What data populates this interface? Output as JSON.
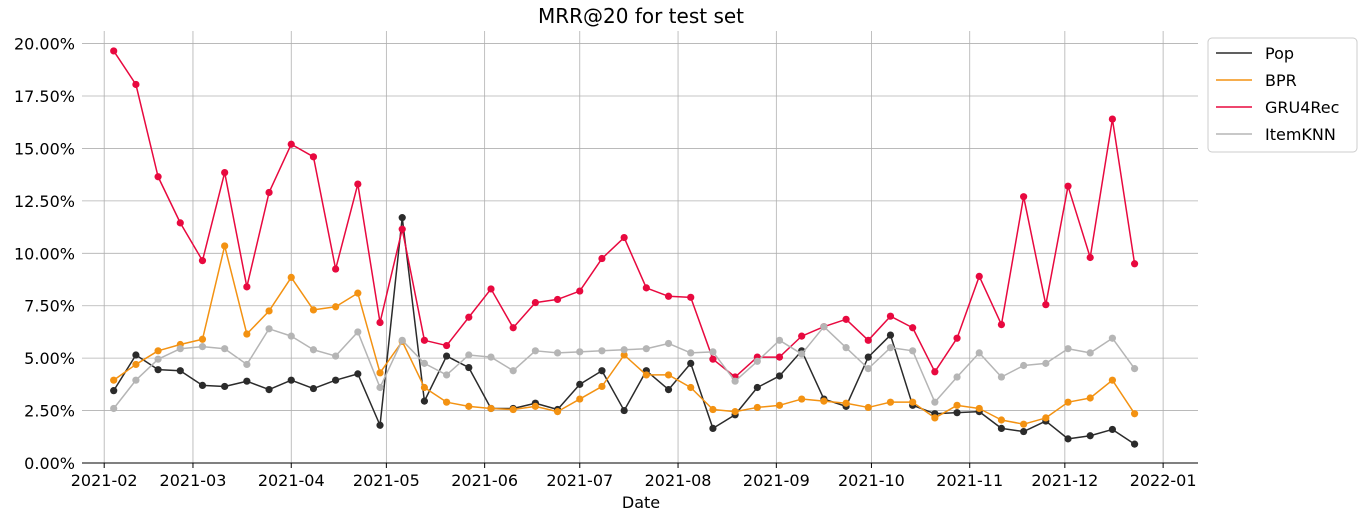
{
  "chart_data": {
    "type": "line",
    "title": "MRR@20 for test set",
    "xlabel": "Date",
    "ylabel": "",
    "x_ticks": [
      "2021-02",
      "2021-03",
      "2021-04",
      "2021-05",
      "2021-06",
      "2021-07",
      "2021-08",
      "2021-09",
      "2021-10",
      "2021-11",
      "2021-12",
      "2022-01"
    ],
    "y_ticks": [
      "0.00%",
      "2.50%",
      "5.00%",
      "7.50%",
      "10.00%",
      "12.50%",
      "15.00%",
      "17.50%",
      "20.00%"
    ],
    "ylim": [
      0,
      20.6
    ],
    "xlim": [
      "2021-01-25",
      "2022-01-12"
    ],
    "y_unit": "percent",
    "grid": true,
    "legend_position": "outside-top-right",
    "x": [
      "2021-02-04",
      "2021-02-11",
      "2021-02-18",
      "2021-02-25",
      "2021-03-04",
      "2021-03-11",
      "2021-03-18",
      "2021-03-25",
      "2021-04-01",
      "2021-04-08",
      "2021-04-15",
      "2021-04-22",
      "2021-04-29",
      "2021-05-06",
      "2021-05-13",
      "2021-05-20",
      "2021-05-27",
      "2021-06-03",
      "2021-06-10",
      "2021-06-17",
      "2021-06-24",
      "2021-07-01",
      "2021-07-08",
      "2021-07-15",
      "2021-07-22",
      "2021-07-29",
      "2021-08-05",
      "2021-08-12",
      "2021-08-19",
      "2021-08-26",
      "2021-09-02",
      "2021-09-09",
      "2021-09-16",
      "2021-09-23",
      "2021-09-30",
      "2021-10-07",
      "2021-10-14",
      "2021-10-21",
      "2021-10-28",
      "2021-11-04",
      "2021-11-11",
      "2021-11-18",
      "2021-11-25",
      "2021-12-02",
      "2021-12-09",
      "2021-12-16",
      "2021-12-23"
    ],
    "series": [
      {
        "name": "Pop",
        "color": "#2b2b2b",
        "values": [
          3.45,
          5.15,
          4.45,
          4.4,
          3.7,
          3.65,
          3.9,
          3.5,
          3.95,
          3.55,
          3.95,
          4.25,
          1.8,
          11.7,
          2.95,
          5.1,
          4.55,
          2.6,
          2.6,
          2.85,
          2.55,
          3.75,
          4.4,
          2.5,
          4.4,
          3.5,
          4.75,
          1.65,
          2.3,
          3.6,
          4.15,
          5.35,
          3.05,
          2.7,
          5.05,
          6.1,
          2.75,
          2.35,
          2.4,
          2.45,
          1.65,
          1.5,
          2.0,
          1.15,
          1.3,
          1.6,
          0.9
        ]
      },
      {
        "name": "BPR",
        "color": "#f39212",
        "values": [
          3.95,
          4.7,
          5.35,
          5.65,
          5.9,
          10.35,
          6.15,
          7.25,
          8.85,
          7.3,
          7.45,
          8.1,
          4.3,
          5.8,
          3.6,
          2.9,
          2.7,
          2.6,
          2.55,
          2.7,
          2.45,
          3.05,
          3.65,
          5.15,
          4.2,
          4.2,
          3.6,
          2.55,
          2.45,
          2.65,
          2.75,
          3.05,
          2.95,
          2.85,
          2.65,
          2.9,
          2.9,
          2.15,
          2.75,
          2.6,
          2.05,
          1.85,
          2.15,
          2.9,
          3.1,
          3.95,
          2.35
        ]
      },
      {
        "name": "GRU4Rec",
        "color": "#e8093f",
        "values": [
          19.65,
          18.05,
          13.65,
          11.45,
          9.65,
          13.85,
          8.4,
          12.9,
          15.2,
          14.6,
          9.25,
          13.3,
          6.7,
          11.15,
          5.85,
          5.6,
          6.95,
          8.3,
          6.45,
          7.65,
          7.8,
          8.2,
          9.75,
          10.75,
          8.35,
          7.95,
          7.9,
          4.95,
          4.1,
          5.05,
          5.05,
          6.05,
          6.5,
          6.85,
          5.85,
          7.0,
          6.45,
          4.35,
          5.95,
          8.9,
          6.6,
          12.7,
          7.55,
          13.2,
          9.8,
          16.4,
          9.5
        ]
      },
      {
        "name": "ItemKNN",
        "color": "#b5b5b5",
        "values": [
          2.6,
          3.95,
          4.95,
          5.45,
          5.55,
          5.45,
          4.7,
          6.4,
          6.05,
          5.4,
          5.1,
          6.25,
          3.6,
          5.85,
          4.75,
          4.2,
          5.15,
          5.05,
          4.4,
          5.35,
          5.25,
          5.3,
          5.35,
          5.4,
          5.45,
          5.7,
          5.25,
          5.3,
          3.9,
          4.85,
          5.85,
          5.2,
          6.5,
          5.5,
          4.5,
          5.5,
          5.35,
          2.9,
          4.1,
          5.25,
          4.1,
          4.65,
          4.75,
          5.45,
          5.25,
          5.95,
          4.5
        ]
      }
    ]
  }
}
